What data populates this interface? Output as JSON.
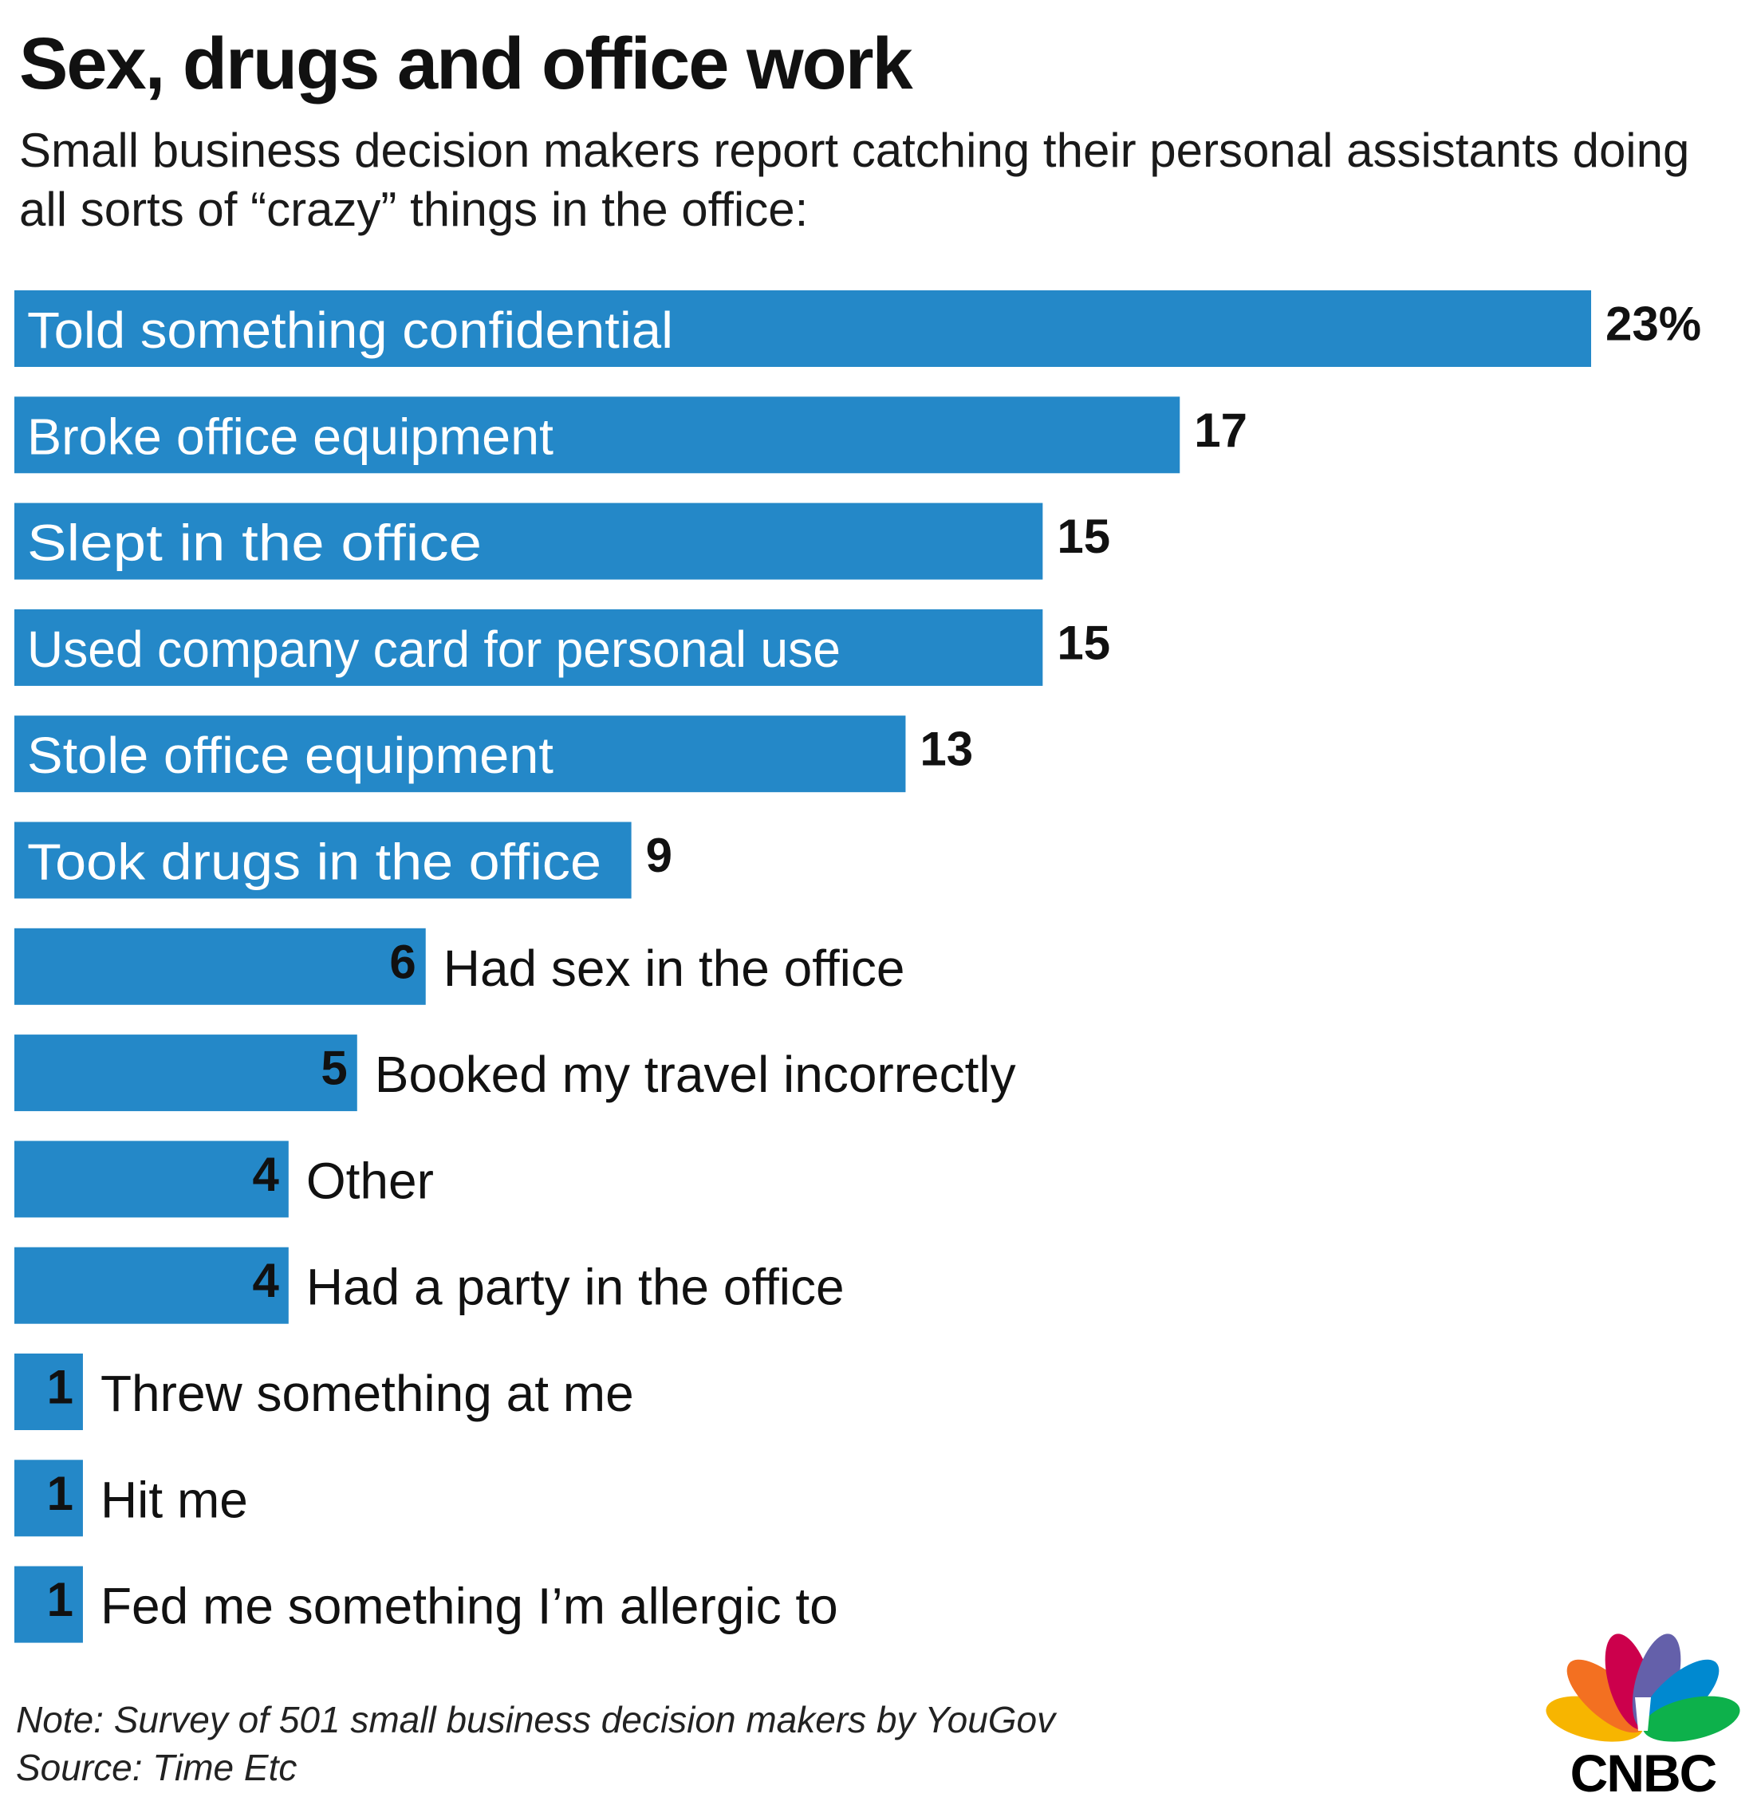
{
  "title": "Sex, drugs and office work",
  "subtitle": "Small business decision makers report catching their personal assistants doing all sorts of “crazy” things in the office:",
  "chart_data": {
    "type": "bar",
    "orientation": "horizontal",
    "unit": "%",
    "categories": [
      "Told something confidential",
      "Broke office equipment",
      "Slept in the office",
      "Used company card for personal use",
      "Stole office equipment",
      "Took drugs in the office",
      "Had sex in the office",
      "Booked my travel incorrectly",
      "Other",
      "Had a party in the office",
      "Threw something at me",
      "Hit me",
      "Fed me something I’m allergic to"
    ],
    "values": [
      23,
      17,
      15,
      15,
      13,
      9,
      6,
      5,
      4,
      4,
      1,
      1,
      1
    ],
    "value_labels": [
      "23%",
      "17",
      "15",
      "15",
      "13",
      "9",
      "6",
      "5",
      "4",
      "4",
      "1",
      "1",
      "1"
    ],
    "bar_color": "#2488c8",
    "grid": false,
    "legend": "none"
  },
  "footer": {
    "note": "Note: Survey of 501 small business decision makers by YouGov",
    "source": "Source: Time Etc"
  },
  "logo": {
    "text": "CNBC",
    "icon": "peacock-logo-icon",
    "feather_colors": [
      "#f7b500",
      "#f37021",
      "#cc004c",
      "#6460aa",
      "#0089d0",
      "#0db14b"
    ]
  }
}
